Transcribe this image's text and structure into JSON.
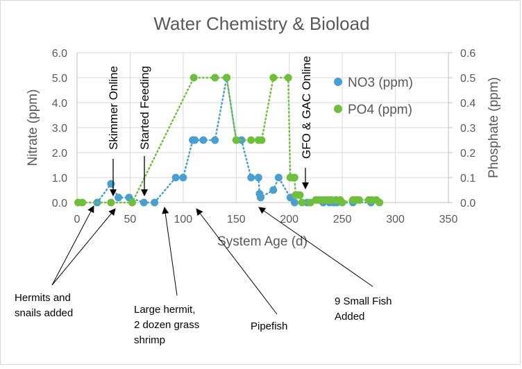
{
  "chart_data": {
    "type": "scatter",
    "title": "Water Chemistry & Bioload",
    "xlabel": "System Age (d)",
    "ylabel": "Nitrate (ppm)",
    "y2label": "Phosphate (ppm)",
    "xlim": [
      0,
      350
    ],
    "ylim": [
      0,
      6
    ],
    "y2lim": [
      0,
      0.6
    ],
    "xticks": [
      "0",
      "50",
      "100",
      "150",
      "200",
      "250",
      "300",
      "350"
    ],
    "yticks": [
      "0.0",
      "1.0",
      "2.0",
      "3.0",
      "4.0",
      "5.0",
      "6.0"
    ],
    "y2ticks": [
      "0.0",
      "0.1",
      "0.2",
      "0.3",
      "0.4",
      "0.5",
      "0.6"
    ],
    "grid": true,
    "legend_position": "top-right",
    "series": [
      {
        "name": "NO3 (ppm)",
        "axis": "left",
        "color": "#4a9fd0",
        "x": [
          19,
          32,
          39,
          49,
          63,
          73,
          93,
          100,
          109,
          111,
          119,
          130,
          141,
          150,
          155,
          164,
          171,
          172,
          173,
          185,
          190,
          201,
          205,
          217,
          232,
          238,
          242,
          245,
          260,
          277
        ],
        "y": [
          0,
          0.75,
          0.2,
          0.2,
          0,
          0,
          1.0,
          1.0,
          2.5,
          2.5,
          2.5,
          2.5,
          5.0,
          2.5,
          2.5,
          1.0,
          1.0,
          0.35,
          0.2,
          0.5,
          1.0,
          0.2,
          0,
          0,
          0,
          0,
          0,
          0,
          0,
          0
        ]
      },
      {
        "name": "PO4 (ppm)",
        "axis": "right",
        "color": "#70bf3c",
        "x": [
          1,
          5,
          32,
          52,
          110,
          130,
          141,
          150,
          164,
          171,
          174,
          185,
          199,
          201,
          203,
          205,
          206,
          208,
          210,
          212,
          220,
          225,
          228,
          231,
          234,
          237,
          240,
          244,
          248,
          250,
          260,
          263,
          266,
          275,
          278,
          282,
          285
        ],
        "y": [
          0,
          0,
          0,
          0,
          0.5,
          0.5,
          0.5,
          0.25,
          0.25,
          0.25,
          0.25,
          0.5,
          0.5,
          0.1,
          0.1,
          0.1,
          0.03,
          0.03,
          0.03,
          0,
          0,
          0.01,
          0.01,
          0.01,
          0.01,
          0.01,
          0.01,
          0.01,
          0.01,
          0,
          0.01,
          0.01,
          0.01,
          0.01,
          0.01,
          0.01,
          0
        ]
      }
    ],
    "annotations": [
      {
        "text": "Skimmer Online",
        "x": 34,
        "orientation": "vertical"
      },
      {
        "text": "Started Feeding",
        "x": 62,
        "orientation": "vertical"
      },
      {
        "text": "GFO & GAC Online",
        "x": 214,
        "orientation": "vertical"
      },
      {
        "text": "Hermits and snails added",
        "targets_x": [
          16,
          36
        ]
      },
      {
        "text": "Large hermit, 2 dozen grass shrimp",
        "targets_x": [
          82
        ]
      },
      {
        "text": "Pipefish",
        "targets_x": [
          112
        ]
      },
      {
        "text": "9 Small Fish Added",
        "targets_x": [
          172
        ]
      }
    ]
  }
}
